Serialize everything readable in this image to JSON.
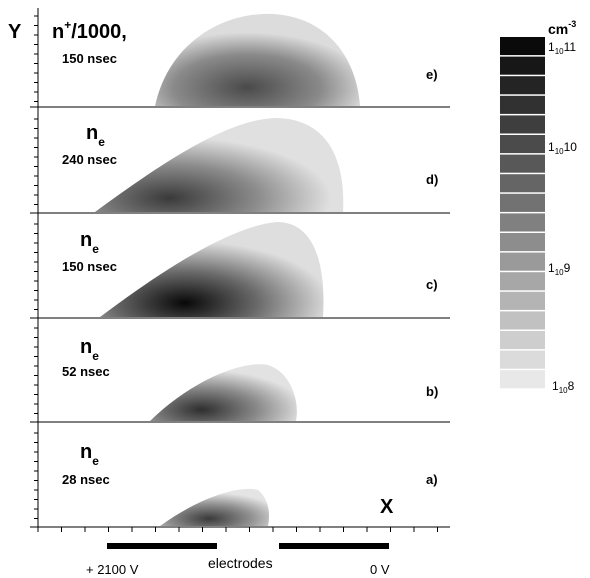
{
  "axes": {
    "y_label": "Y",
    "x_label": "X"
  },
  "panels": [
    {
      "tag": "e)",
      "base": "n",
      "sup": "+",
      "rest": "/1000,",
      "time": "150 nsec"
    },
    {
      "tag": "d)",
      "base": "n",
      "sub": "e",
      "time": "240 nsec"
    },
    {
      "tag": "c)",
      "base": "n",
      "sub": "e",
      "time": "150 nsec"
    },
    {
      "tag": "b)",
      "base": "n",
      "sub": "e",
      "time": "52 nsec"
    },
    {
      "tag": "a)",
      "base": "n",
      "sub": "e",
      "time": "28 nsec"
    }
  ],
  "colorbar": {
    "unit": "cm",
    "unit_exp": "-3",
    "labels": [
      {
        "base": "1",
        "sub": "10",
        "exp": "11"
      },
      {
        "base": "1",
        "sub": "10",
        "exp": "10"
      },
      {
        "base": "1",
        "sub": "10",
        "exp": "9"
      },
      {
        "base": "1",
        "sub": "10",
        "exp": "8"
      }
    ]
  },
  "electrodes": {
    "left": "+ 2100 V",
    "middle": "electrodes",
    "right": "0 V"
  }
}
